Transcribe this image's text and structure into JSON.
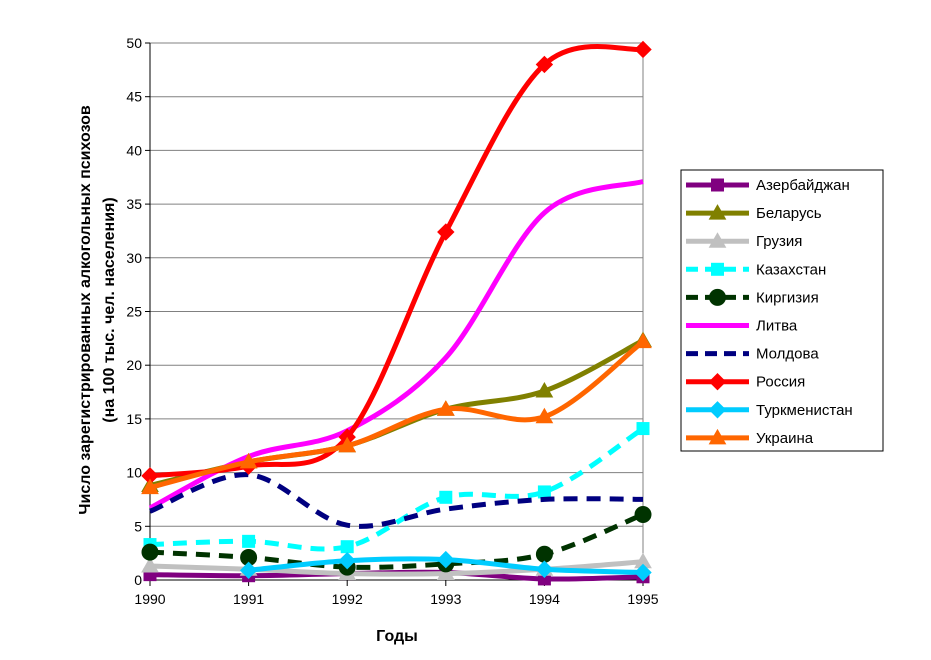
{
  "chart_data": {
    "type": "line",
    "title": "",
    "xlabel": "Годы",
    "ylabel_line1": "Число зарегистрированных алкогольных психозов",
    "ylabel_line2": "(на 100 тыс. чел. населения)",
    "x": [
      "1990",
      "1991",
      "1992",
      "1993",
      "1994",
      "1995"
    ],
    "ylim": [
      0,
      50
    ],
    "yticks": [
      0,
      5,
      10,
      15,
      20,
      25,
      30,
      35,
      40,
      45,
      50
    ],
    "grid": "horizontal",
    "legend_position": "right",
    "series": [
      {
        "name": "Азербайджан",
        "color": "#800080",
        "dash": "solid",
        "marker": "square",
        "values": [
          0.5,
          0.4,
          0.6,
          0.7,
          0.1,
          0.3
        ]
      },
      {
        "name": "Беларусь",
        "color": "#808000",
        "dash": "solid",
        "marker": "triangle",
        "values": [
          8.8,
          11.0,
          12.5,
          15.9,
          17.6,
          22.3
        ]
      },
      {
        "name": "Грузия",
        "color": "#c0c0c0",
        "dash": "solid",
        "marker": "triangle",
        "values": [
          1.3,
          1.0,
          0.6,
          0.6,
          1.0,
          1.7
        ]
      },
      {
        "name": "Казахстан",
        "color": "#00ffff",
        "dash": "dash",
        "marker": "square",
        "values": [
          3.3,
          3.6,
          3.1,
          7.7,
          8.2,
          14.1
        ]
      },
      {
        "name": "Киргизия",
        "color": "#003300",
        "dash": "dash",
        "marker": "circle",
        "values": [
          2.6,
          2.1,
          1.2,
          1.5,
          2.4,
          6.1
        ]
      },
      {
        "name": "Литва",
        "color": "#ff00ff",
        "dash": "solid",
        "marker": "none",
        "values": [
          6.7,
          11.5,
          13.9,
          20.7,
          34.2,
          37.1
        ]
      },
      {
        "name": "Молдова",
        "color": "#000080",
        "dash": "dash",
        "marker": "none",
        "values": [
          6.4,
          9.8,
          5.1,
          6.6,
          7.5,
          7.5
        ]
      },
      {
        "name": "Россия",
        "color": "#ff0000",
        "dash": "solid",
        "marker": "diamond",
        "values": [
          9.7,
          10.6,
          13.3,
          32.4,
          48.0,
          49.4
        ]
      },
      {
        "name": "Туркменистан",
        "color": "#00ccff",
        "dash": "solid",
        "marker": "diamond",
        "values": [
          null,
          0.9,
          1.8,
          1.9,
          1.0,
          0.7
        ]
      },
      {
        "name": "Украина",
        "color": "#ff6600",
        "dash": "solid",
        "marker": "triangle",
        "values": [
          8.6,
          11.0,
          12.5,
          15.9,
          15.2,
          22.2
        ]
      }
    ]
  }
}
